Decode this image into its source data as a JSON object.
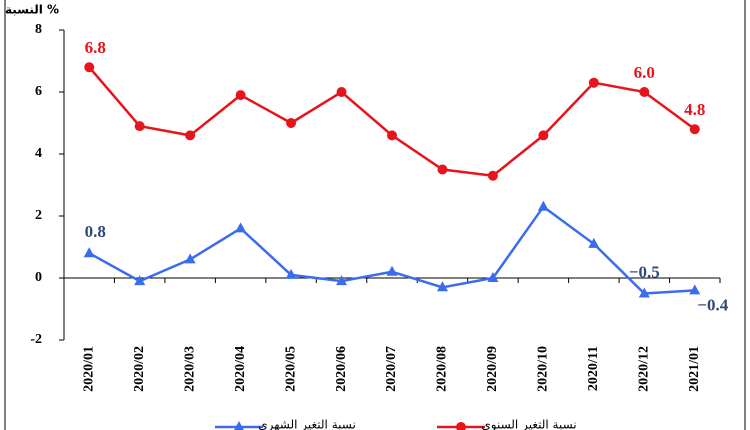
{
  "chart_data": {
    "type": "line",
    "y_label": "النسبة %",
    "categories": [
      "2020/01",
      "2020/02",
      "2020/03",
      "2020/04",
      "2020/05",
      "2020/06",
      "2020/07",
      "2020/08",
      "2020/09",
      "2020/10",
      "2020/11",
      "2020/12",
      "2021/01"
    ],
    "series": [
      {
        "name": "نسبة التغير الشهري",
        "color": "#3a6cf0",
        "marker": "triangle",
        "label_color": "#2e4a7a",
        "values": [
          0.8,
          -0.1,
          0.6,
          1.6,
          0.1,
          -0.1,
          0.2,
          -0.3,
          0.0,
          2.3,
          1.1,
          -0.5,
          -0.4
        ],
        "value_labels": [
          "0.8",
          null,
          null,
          null,
          null,
          null,
          null,
          null,
          null,
          null,
          null,
          "−0.5",
          "−0.4"
        ]
      },
      {
        "name": "نسبة التغير السنوي",
        "color": "#e8141b",
        "marker": "circle",
        "label_color": "#e8141b",
        "values": [
          6.8,
          4.9,
          4.6,
          5.9,
          5.0,
          6.0,
          4.6,
          3.5,
          3.3,
          4.6,
          6.3,
          6.0,
          4.8
        ],
        "value_labels": [
          "6.8",
          null,
          null,
          null,
          null,
          null,
          null,
          null,
          null,
          null,
          null,
          "6.0",
          "4.8"
        ]
      }
    ],
    "ylim": [
      -2,
      8
    ],
    "yticks": [
      -2,
      0,
      2,
      4,
      6,
      8
    ],
    "grid": false,
    "legend": "bottom"
  }
}
